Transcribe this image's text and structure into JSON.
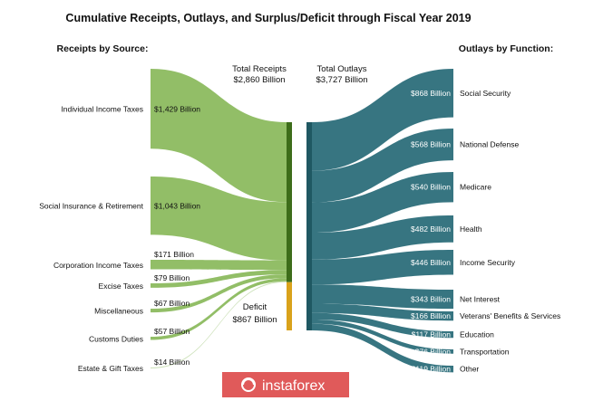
{
  "chart_data": {
    "type": "sankey",
    "title": "Cumulative Receipts, Outlays, and Surplus/Deficit through Fiscal Year 2019",
    "receipts_heading": "Receipts by Source:",
    "outlays_heading": "Outlays by Function:",
    "total_receipts_label": "Total Receipts",
    "total_receipts_value": "$2,860 Billion",
    "total_outlays_label": "Total Outlays",
    "total_outlays_value": "$3,727 Billion",
    "deficit_label": "Deficit",
    "deficit_value": "$867 Billion",
    "receipts": [
      {
        "name": "Individual Income Taxes",
        "value": 1429,
        "label": "$1,429 Billion"
      },
      {
        "name": "Social Insurance & Retirement",
        "value": 1043,
        "label": "$1,043 Billion"
      },
      {
        "name": "Corporation Income Taxes",
        "value": 171,
        "label": "$171 Billion"
      },
      {
        "name": "Excise Taxes",
        "value": 79,
        "label": "$79 Billion"
      },
      {
        "name": "Miscellaneous",
        "value": 67,
        "label": "$67 Billion"
      },
      {
        "name": "Customs Duties",
        "value": 57,
        "label": "$57 Billion"
      },
      {
        "name": "Estate & Gift Taxes",
        "value": 14,
        "label": "$14 Billion"
      }
    ],
    "outlays": [
      {
        "name": "Social Security",
        "value": 868,
        "label": "$868 Billion"
      },
      {
        "name": "National Defense",
        "value": 568,
        "label": "$568 Billion"
      },
      {
        "name": "Medicare",
        "value": 540,
        "label": "$540 Billion"
      },
      {
        "name": "Health",
        "value": 482,
        "label": "$482 Billion"
      },
      {
        "name": "Income Security",
        "value": 446,
        "label": "$446 Billion"
      },
      {
        "name": "Net Interest",
        "value": 343,
        "label": "$343 Billion"
      },
      {
        "name": "Veterans' Benefits & Services",
        "value": 166,
        "label": "$166 Billion"
      },
      {
        "name": "Education",
        "value": 117,
        "label": "$117 Billion"
      },
      {
        "name": "Transportation",
        "value": 76,
        "label": "$76 Billion"
      },
      {
        "name": "Other",
        "value": 119,
        "label": "$119 Billion"
      }
    ],
    "colors": {
      "receipts": "#8cba5f",
      "receipts_bar": "#3d6d1a",
      "outlays": "#2c6e7a",
      "outlays_bar": "#1f5862",
      "deficit": "#d9a21b"
    }
  },
  "watermark": {
    "text": "instaforex",
    "color": "#e05a5a"
  }
}
